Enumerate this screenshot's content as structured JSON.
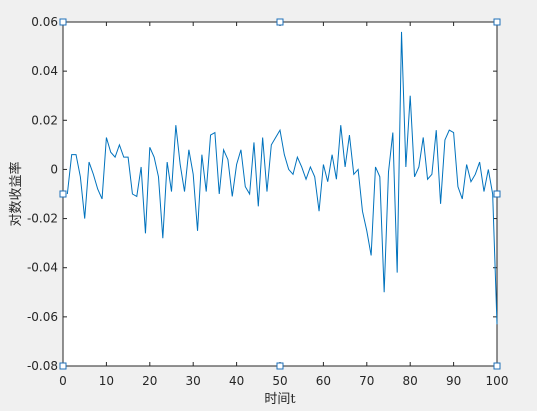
{
  "chart_data": {
    "type": "line",
    "xlabel": "时间t",
    "ylabel": "对数收益率",
    "x": [
      1,
      2,
      3,
      4,
      5,
      6,
      7,
      8,
      9,
      10,
      11,
      12,
      13,
      14,
      15,
      16,
      17,
      18,
      19,
      20,
      21,
      22,
      23,
      24,
      25,
      26,
      27,
      28,
      29,
      30,
      31,
      32,
      33,
      34,
      35,
      36,
      37,
      38,
      39,
      40,
      41,
      42,
      43,
      44,
      45,
      46,
      47,
      48,
      49,
      50,
      51,
      52,
      53,
      54,
      55,
      56,
      57,
      58,
      59,
      60,
      61,
      62,
      63,
      64,
      65,
      66,
      67,
      68,
      69,
      70,
      71,
      72,
      73,
      74,
      75,
      76,
      77,
      78,
      79,
      80,
      81,
      82,
      83,
      84,
      85,
      86,
      87,
      88,
      89,
      90,
      91,
      92,
      93,
      94,
      95,
      96,
      97,
      98,
      99,
      100
    ],
    "series": [
      {
        "color": "#0072bd",
        "values": [
          -0.01,
          0.006,
          0.006,
          -0.003,
          -0.02,
          0.003,
          -0.002,
          -0.008,
          -0.012,
          0.013,
          0.007,
          0.005,
          0.01,
          0.005,
          0.005,
          -0.01,
          -0.011,
          0.001,
          -0.026,
          0.009,
          0.005,
          -0.003,
          -0.028,
          0.003,
          -0.009,
          0.018,
          0.002,
          -0.009,
          0.008,
          -0.002,
          -0.025,
          0.006,
          -0.009,
          0.014,
          0.015,
          -0.01,
          0.008,
          0.004,
          -0.011,
          0.002,
          0.008,
          -0.007,
          -0.01,
          0.011,
          -0.015,
          0.013,
          -0.009,
          0.01,
          0.013,
          0.016,
          0.006,
          0.0,
          -0.002,
          0.005,
          0.001,
          -0.004,
          0.001,
          -0.003,
          -0.017,
          0.002,
          -0.005,
          0.006,
          -0.004,
          0.018,
          0.001,
          0.014,
          -0.002,
          0.0,
          -0.017,
          -0.025,
          -0.035,
          0.001,
          -0.003,
          -0.05,
          -0.001,
          0.015,
          -0.042,
          0.056,
          0.001,
          0.03,
          -0.003,
          0.001,
          0.013,
          -0.004,
          -0.002,
          0.016,
          -0.014,
          0.012,
          0.016,
          0.015,
          -0.007,
          -0.012,
          0.002,
          -0.005,
          -0.002,
          0.003,
          -0.009,
          0.0,
          -0.01,
          -0.063
        ]
      }
    ],
    "xlim": [
      0,
      100
    ],
    "xticks": [
      0,
      10,
      20,
      30,
      40,
      50,
      60,
      70,
      80,
      90,
      100
    ],
    "ylim": [
      -0.08,
      0.06
    ],
    "yticks": [
      -0.08,
      -0.06,
      -0.04,
      -0.02,
      0,
      0.02,
      0.04,
      0.06
    ]
  }
}
